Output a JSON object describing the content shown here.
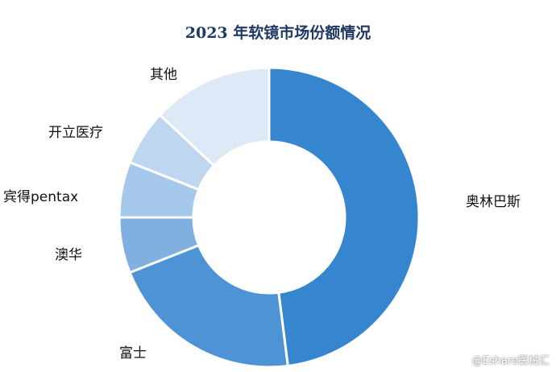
{
  "chart_data": {
    "type": "pie",
    "variant": "donut",
    "title": "2023 年软镜市场份额情况",
    "slices": [
      {
        "label": "奥林巴斯",
        "value": 48,
        "color": "#3586cf"
      },
      {
        "label": "富士",
        "value": 21,
        "color": "#4d93d6"
      },
      {
        "label": "澳华",
        "value": 6,
        "color": "#7fb0e0"
      },
      {
        "label": "宾得pentax",
        "value": 6,
        "color": "#a6c8ea"
      },
      {
        "label": "开立医疗",
        "value": 6,
        "color": "#bed6f0"
      },
      {
        "label": "其他",
        "value": 13,
        "color": "#dde9f6"
      }
    ],
    "legend": "none",
    "labels": "outside"
  },
  "watermark": "@Eshare医械汇"
}
